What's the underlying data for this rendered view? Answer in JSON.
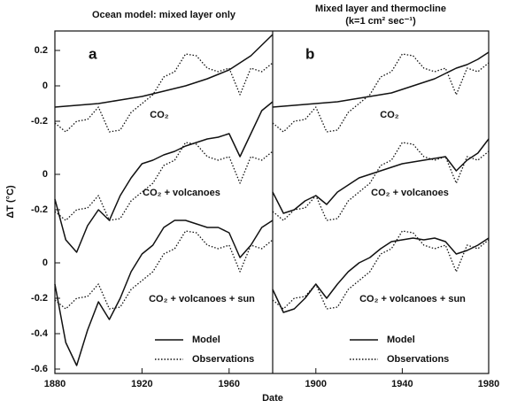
{
  "chart_data": [
    {
      "type": "line",
      "title": "Ocean model: mixed layer only",
      "panel": "a",
      "xlabel": "Date",
      "ylabel": "ΔT (°C)",
      "xlim": [
        1880,
        1980
      ],
      "xticks": [
        1880,
        1920,
        1960
      ],
      "x": [
        1880,
        1885,
        1890,
        1895,
        1900,
        1905,
        1910,
        1915,
        1920,
        1925,
        1930,
        1935,
        1940,
        1945,
        1950,
        1955,
        1960,
        1965,
        1970,
        1975,
        1980
      ],
      "legend": [
        {
          "name": "Model",
          "style": "solid"
        },
        {
          "name": "Observations",
          "style": "dotted"
        }
      ],
      "rows": [
        {
          "label": "CO₂",
          "ylim": [
            -1.625,
            0.31
          ],
          "yticks": [
            0.2,
            0,
            -0.2
          ],
          "series": [
            {
              "style": "solid",
              "values": [
                -0.12,
                -0.115,
                -0.11,
                -0.105,
                -0.1,
                -0.09,
                -0.08,
                -0.07,
                -0.06,
                -0.045,
                -0.03,
                -0.015,
                0,
                0.02,
                0.04,
                0.065,
                0.09,
                0.13,
                0.17,
                0.23,
                0.29
              ]
            },
            {
              "style": "dotted",
              "values": [
                -0.21,
                -0.26,
                -0.2,
                -0.19,
                -0.12,
                -0.26,
                -0.25,
                -0.15,
                -0.1,
                -0.05,
                0.05,
                0.08,
                0.18,
                0.17,
                0.1,
                0.08,
                0.1,
                -0.05,
                0.1,
                0.08,
                0.13
              ]
            }
          ]
        },
        {
          "label": "CO₂ + volcanoes",
          "ylim": [
            -1.125,
            0.81
          ],
          "yticks": [
            0,
            -0.2
          ],
          "series": [
            {
              "style": "solid",
              "values": [
                -0.14,
                -0.37,
                -0.44,
                -0.29,
                -0.2,
                -0.26,
                -0.12,
                -0.02,
                0.06,
                0.08,
                0.11,
                0.13,
                0.16,
                0.18,
                0.2,
                0.21,
                0.23,
                0.1,
                0.23,
                0.36,
                0.41
              ]
            },
            {
              "style": "dotted",
              "values": [
                -0.21,
                -0.26,
                -0.2,
                -0.19,
                -0.12,
                -0.26,
                -0.25,
                -0.15,
                -0.1,
                -0.05,
                0.05,
                0.08,
                0.18,
                0.17,
                0.1,
                0.08,
                0.1,
                -0.05,
                0.1,
                0.08,
                0.13
              ]
            }
          ]
        },
        {
          "label": "CO₂ + volcanoes + sun",
          "ylim": [
            -0.625,
            1.31
          ],
          "yticks": [
            0,
            -0.2,
            -0.4,
            -0.6
          ],
          "series": [
            {
              "style": "solid",
              "values": [
                -0.12,
                -0.45,
                -0.58,
                -0.38,
                -0.22,
                -0.32,
                -0.2,
                -0.05,
                0.05,
                0.1,
                0.2,
                0.24,
                0.24,
                0.22,
                0.2,
                0.2,
                0.17,
                0.03,
                0.1,
                0.2,
                0.24
              ]
            },
            {
              "style": "dotted",
              "values": [
                -0.21,
                -0.26,
                -0.2,
                -0.19,
                -0.12,
                -0.26,
                -0.25,
                -0.15,
                -0.1,
                -0.05,
                0.05,
                0.08,
                0.18,
                0.17,
                0.1,
                0.08,
                0.1,
                -0.05,
                0.1,
                0.08,
                0.13
              ]
            }
          ]
        }
      ]
    },
    {
      "type": "line",
      "title": "Mixed layer and thermocline",
      "subtitle": "(k=1 cm² sec⁻¹)",
      "panel": "b",
      "xlim": [
        1880,
        1980
      ],
      "xticks": [
        1900,
        1940,
        1980
      ],
      "x": [
        1880,
        1885,
        1890,
        1895,
        1900,
        1905,
        1910,
        1915,
        1920,
        1925,
        1930,
        1935,
        1940,
        1945,
        1950,
        1955,
        1960,
        1965,
        1970,
        1975,
        1980
      ],
      "legend": [
        {
          "name": "Model",
          "style": "solid"
        },
        {
          "name": "Observations",
          "style": "dotted"
        }
      ],
      "rows": [
        {
          "label": "CO₂",
          "ylim": [
            -1.625,
            0.31
          ],
          "series": [
            {
              "style": "solid",
              "values": [
                -0.12,
                -0.115,
                -0.11,
                -0.105,
                -0.1,
                -0.095,
                -0.09,
                -0.08,
                -0.07,
                -0.06,
                -0.05,
                -0.04,
                -0.02,
                0,
                0.02,
                0.04,
                0.07,
                0.1,
                0.12,
                0.15,
                0.19
              ]
            },
            {
              "style": "dotted",
              "values": [
                -0.21,
                -0.26,
                -0.2,
                -0.19,
                -0.12,
                -0.26,
                -0.25,
                -0.15,
                -0.1,
                -0.05,
                0.05,
                0.08,
                0.18,
                0.17,
                0.1,
                0.08,
                0.1,
                -0.05,
                0.1,
                0.08,
                0.13
              ]
            }
          ]
        },
        {
          "label": "CO₂ + volcanoes",
          "ylim": [
            -1.125,
            0.81
          ],
          "series": [
            {
              "style": "solid",
              "values": [
                -0.1,
                -0.22,
                -0.2,
                -0.15,
                -0.12,
                -0.17,
                -0.1,
                -0.06,
                -0.02,
                0,
                0.02,
                0.04,
                0.06,
                0.07,
                0.08,
                0.09,
                0.1,
                0.02,
                0.08,
                0.12,
                0.2
              ]
            },
            {
              "style": "dotted",
              "values": [
                -0.21,
                -0.26,
                -0.2,
                -0.19,
                -0.12,
                -0.26,
                -0.25,
                -0.15,
                -0.1,
                -0.05,
                0.05,
                0.08,
                0.18,
                0.17,
                0.1,
                0.08,
                0.1,
                -0.05,
                0.1,
                0.08,
                0.13
              ]
            }
          ]
        },
        {
          "label": "CO₂ + volcanoes + sun",
          "ylim": [
            -0.625,
            1.31
          ],
          "series": [
            {
              "style": "solid",
              "values": [
                -0.15,
                -0.28,
                -0.26,
                -0.2,
                -0.12,
                -0.2,
                -0.12,
                -0.05,
                0,
                0.03,
                0.08,
                0.12,
                0.13,
                0.14,
                0.13,
                0.14,
                0.12,
                0.05,
                0.07,
                0.1,
                0.14
              ]
            },
            {
              "style": "dotted",
              "values": [
                -0.21,
                -0.26,
                -0.2,
                -0.19,
                -0.12,
                -0.26,
                -0.25,
                -0.15,
                -0.1,
                -0.05,
                0.05,
                0.08,
                0.18,
                0.17,
                0.1,
                0.08,
                0.1,
                -0.05,
                0.1,
                0.08,
                0.13
              ]
            }
          ]
        }
      ]
    }
  ]
}
